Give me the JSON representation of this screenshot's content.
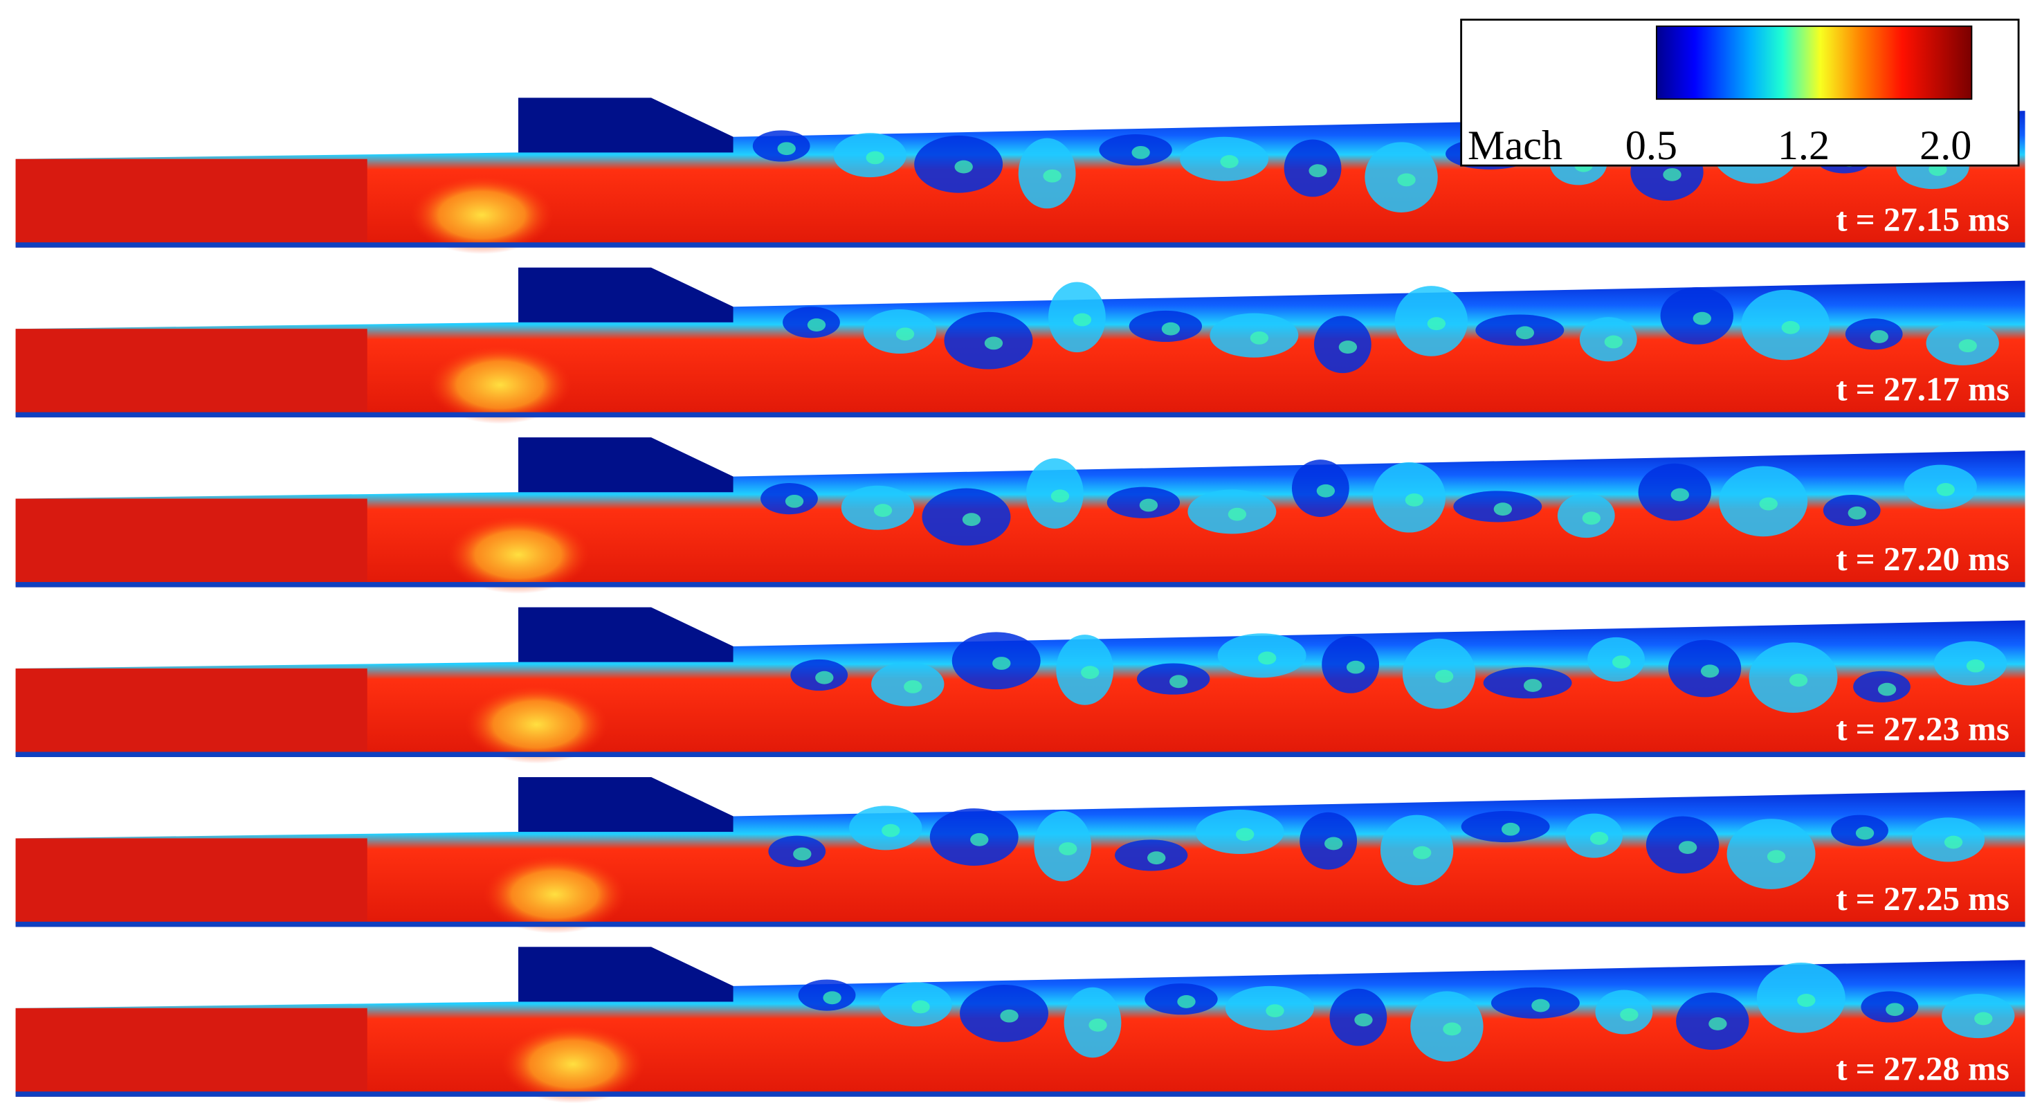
{
  "colorbar": {
    "label": "Mach",
    "range": [
      0.5,
      2.0
    ],
    "ticks": [
      {
        "value": 0.5,
        "label": "0.5"
      },
      {
        "value": 1.2,
        "label": "1.2"
      },
      {
        "value": 2,
        "label": "2.0"
      }
    ]
  },
  "panels": [
    {
      "time": "t = 27.15 ms"
    },
    {
      "time": "t = 27.17 ms"
    },
    {
      "time": "t = 27.20 ms"
    },
    {
      "time": "t = 27.23 ms"
    },
    {
      "time": "t = 27.25 ms"
    },
    {
      "time": "t = 27.28 ms"
    }
  ]
}
